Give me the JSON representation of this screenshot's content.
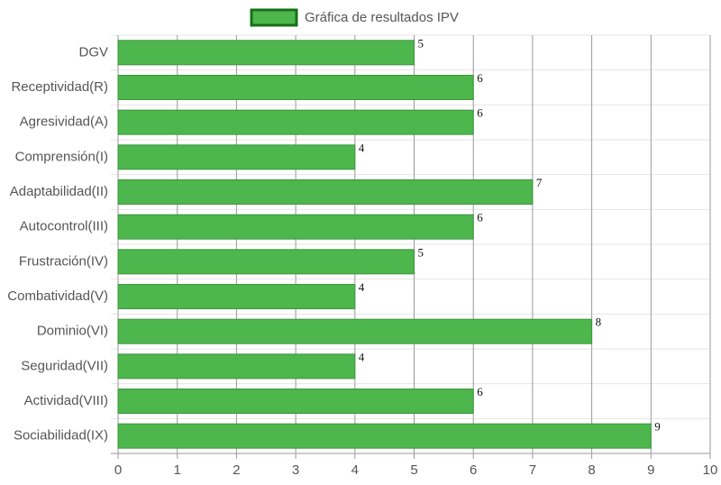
{
  "chart_data": {
    "type": "bar",
    "categories": [
      "DGV",
      "Receptividad(R)",
      "Agresividad(A)",
      "Comprensión(I)",
      "Adaptabilidad(II)",
      "Autocontrol(III)",
      "Frustración(IV)",
      "Combatividad(V)",
      "Dominio(VI)",
      "Seguridad(VII)",
      "Actividad(VIII)",
      "Sociabilidad(IX)"
    ],
    "series": [
      {
        "name": "Gráfica de resultados IPV",
        "color": "#4db64d",
        "values": [
          5,
          6,
          6,
          4,
          7,
          6,
          5,
          4,
          8,
          4,
          6,
          9
        ]
      }
    ],
    "xlim": [
      0,
      10
    ],
    "xticks": [
      0,
      1,
      2,
      3,
      4,
      5,
      6,
      7,
      8,
      9,
      10
    ],
    "grid": true,
    "legend": "top"
  }
}
